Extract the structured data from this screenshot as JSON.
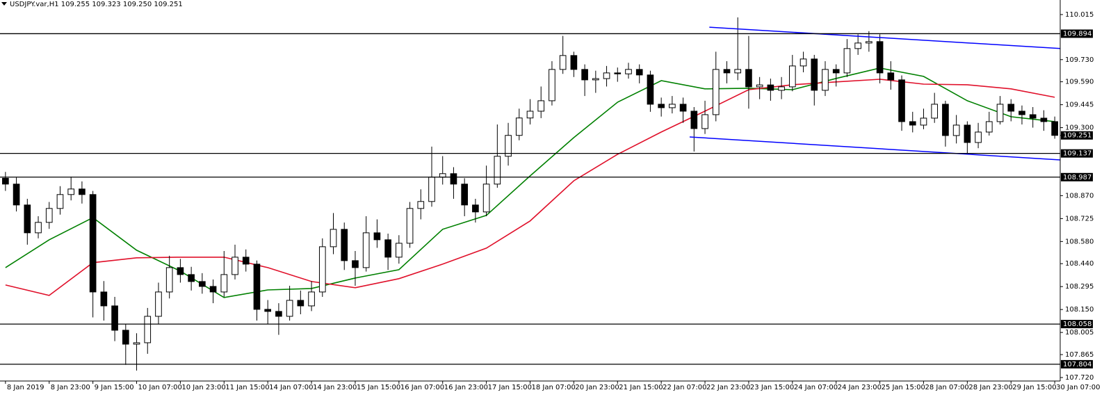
{
  "chart_data": {
    "type": "candlestick",
    "header": "USDJPY.var,H1  109.255 109.323 109.250 109.251",
    "open": [
      108.98,
      108.943,
      108.811,
      108.635,
      108.701,
      108.789,
      108.877,
      108.912,
      108.877,
      108.261,
      108.173,
      108.019,
      107.931,
      107.94,
      108.107,
      108.261,
      108.415,
      108.371,
      108.327,
      108.296,
      108.261,
      108.371,
      108.481,
      108.437,
      108.151,
      108.138,
      108.107,
      108.208,
      108.173,
      108.261,
      108.547,
      108.657,
      108.459,
      108.415,
      108.635,
      108.591,
      108.481,
      108.569,
      108.789,
      108.833,
      108.987,
      109.009,
      108.943,
      108.811,
      108.767,
      108.943,
      109.119,
      109.251,
      109.361,
      109.404,
      109.47,
      109.668,
      109.756,
      109.668,
      109.602,
      109.61,
      109.646,
      109.64,
      109.668,
      109.633,
      109.448,
      109.426,
      109.448,
      109.404,
      109.294,
      109.382,
      109.668,
      109.646,
      109.668,
      109.558,
      109.57,
      109.536,
      109.558,
      109.69,
      109.734,
      109.536,
      109.668,
      109.646,
      109.8,
      109.835,
      109.844,
      109.646,
      109.602,
      109.338,
      109.316,
      109.36,
      109.448,
      109.25,
      109.316,
      109.206,
      109.272,
      109.338,
      109.448,
      109.404,
      109.382,
      109.36,
      109.338
    ],
    "high": [
      109.02,
      108.985,
      108.85,
      108.74,
      108.83,
      108.93,
      108.99,
      108.96,
      108.9,
      108.33,
      108.23,
      108.06,
      108.0,
      108.16,
      108.32,
      108.49,
      108.47,
      108.42,
      108.38,
      108.34,
      108.52,
      108.56,
      108.53,
      108.46,
      108.21,
      108.19,
      108.3,
      108.27,
      108.33,
      108.6,
      108.76,
      108.7,
      108.52,
      108.74,
      108.72,
      108.63,
      108.62,
      108.83,
      108.91,
      109.18,
      109.12,
      109.05,
      108.98,
      108.85,
      109.06,
      109.32,
      109.33,
      109.42,
      109.48,
      109.56,
      109.72,
      109.88,
      109.78,
      109.7,
      109.66,
      109.69,
      109.68,
      109.71,
      109.7,
      109.66,
      109.49,
      109.5,
      109.49,
      109.43,
      109.47,
      109.78,
      109.72,
      109.997,
      109.88,
      109.62,
      109.61,
      109.62,
      109.76,
      109.78,
      109.76,
      109.72,
      109.7,
      109.86,
      109.89,
      109.91,
      109.89,
      109.72,
      109.63,
      109.4,
      109.42,
      109.52,
      109.47,
      109.38,
      109.34,
      109.33,
      109.4,
      109.5,
      109.48,
      109.44,
      109.43,
      109.41,
      109.37
    ],
    "low": [
      108.9,
      108.77,
      108.56,
      108.6,
      108.66,
      108.75,
      108.84,
      108.82,
      108.1,
      108.08,
      107.95,
      107.8,
      107.764,
      107.87,
      108.06,
      108.22,
      108.32,
      108.27,
      108.25,
      108.19,
      108.23,
      108.34,
      108.39,
      108.08,
      108.06,
      107.99,
      108.08,
      108.12,
      108.14,
      108.23,
      108.5,
      108.4,
      108.3,
      108.39,
      108.54,
      108.4,
      108.44,
      108.54,
      108.72,
      108.8,
      108.94,
      108.85,
      108.74,
      108.7,
      108.74,
      108.92,
      109.06,
      109.22,
      109.32,
      109.36,
      109.44,
      109.64,
      109.62,
      109.5,
      109.52,
      109.56,
      109.59,
      109.61,
      109.58,
      109.4,
      109.37,
      109.39,
      109.33,
      109.149,
      109.26,
      109.34,
      109.58,
      109.6,
      109.42,
      109.48,
      109.47,
      109.48,
      109.53,
      109.65,
      109.44,
      109.5,
      109.56,
      109.62,
      109.76,
      109.78,
      109.58,
      109.54,
      109.28,
      109.27,
      109.29,
      109.33,
      109.18,
      109.2,
      109.13,
      109.17,
      109.25,
      109.32,
      109.34,
      109.32,
      109.3,
      109.28,
      109.23
    ],
    "close": [
      108.943,
      108.811,
      108.635,
      108.701,
      108.789,
      108.877,
      108.912,
      108.877,
      108.261,
      108.173,
      108.019,
      107.931,
      107.94,
      108.107,
      108.261,
      108.415,
      108.371,
      108.327,
      108.296,
      108.261,
      108.371,
      108.481,
      108.437,
      108.151,
      108.138,
      108.107,
      108.208,
      108.173,
      108.261,
      108.547,
      108.657,
      108.459,
      108.415,
      108.635,
      108.591,
      108.481,
      108.569,
      108.789,
      108.833,
      108.987,
      109.009,
      108.943,
      108.811,
      108.767,
      108.943,
      109.119,
      109.251,
      109.361,
      109.404,
      109.47,
      109.668,
      109.756,
      109.668,
      109.602,
      109.61,
      109.646,
      109.64,
      109.668,
      109.633,
      109.448,
      109.426,
      109.448,
      109.404,
      109.294,
      109.382,
      109.668,
      109.646,
      109.668,
      109.558,
      109.57,
      109.536,
      109.558,
      109.69,
      109.734,
      109.536,
      109.668,
      109.646,
      109.8,
      109.835,
      109.844,
      109.646,
      109.602,
      109.338,
      109.316,
      109.36,
      109.448,
      109.25,
      109.316,
      109.206,
      109.272,
      109.338,
      109.448,
      109.404,
      109.382,
      109.36,
      109.338,
      109.251
    ],
    "bull_color": "#ffffff",
    "bear_color": "#000000",
    "wick_color": "#000000",
    "xlim": [
      -0.5,
      96.5
    ],
    "ylim": [
      107.698,
      110.107
    ],
    "xticks": [
      {
        "value": 0,
        "label": "8 Jan 2019"
      },
      {
        "value": 4,
        "label": "8 Jan 23:00"
      },
      {
        "value": 8,
        "label": "9 Jan 15:00"
      },
      {
        "value": 12,
        "label": "10 Jan 07:00"
      },
      {
        "value": 16,
        "label": "10 Jan 23:00"
      },
      {
        "value": 20,
        "label": "11 Jan 15:00"
      },
      {
        "value": 24,
        "label": "14 Jan 07:00"
      },
      {
        "value": 28,
        "label": "14 Jan 23:00"
      },
      {
        "value": 32,
        "label": "15 Jan 15:00"
      },
      {
        "value": 36,
        "label": "16 Jan 07:00"
      },
      {
        "value": 40,
        "label": "16 Jan 23:00"
      },
      {
        "value": 44,
        "label": "17 Jan 15:00"
      },
      {
        "value": 48,
        "label": "18 Jan 07:00"
      },
      {
        "value": 52,
        "label": "20 Jan 23:00"
      },
      {
        "value": 56,
        "label": "21 Jan 15:00"
      },
      {
        "value": 60,
        "label": "22 Jan 07:00"
      },
      {
        "value": 64,
        "label": "22 Jan 23:00"
      },
      {
        "value": 68,
        "label": "23 Jan 15:00"
      },
      {
        "value": 72,
        "label": "24 Jan 07:00"
      },
      {
        "value": 76,
        "label": "24 Jan 23:00"
      },
      {
        "value": 80,
        "label": "25 Jan 15:00"
      },
      {
        "value": 84,
        "label": "28 Jan 07:00"
      },
      {
        "value": 88,
        "label": "28 Jan 23:00"
      },
      {
        "value": 92,
        "label": "29 Jan 15:00"
      },
      {
        "value": 96,
        "label": "30 Jan 07:00"
      }
    ],
    "yticks": [
      110.015,
      {
        "value": 109.73,
        "label": "109.730"
      },
      {
        "value": 109.59,
        "label": "109.590"
      },
      109.445,
      {
        "value": 109.3,
        "label": "109.300"
      },
      {
        "value": 108.87,
        "label": "108.870"
      },
      108.725,
      {
        "value": 108.58,
        "label": "108.580"
      },
      {
        "value": 108.44,
        "label": "108.440"
      },
      108.295,
      {
        "value": 108.15,
        "label": "108.150"
      },
      108.005,
      107.865,
      {
        "value": 107.72,
        "label": "107.720"
      }
    ],
    "lines": [
      {
        "color": "#008000",
        "x": [
          0,
          4,
          8,
          12,
          16,
          20,
          24,
          28,
          32,
          36,
          40,
          44,
          48,
          52,
          56,
          60,
          64,
          68,
          72,
          76,
          80,
          84,
          88,
          92,
          96
        ],
        "values": [
          108.415,
          108.591,
          108.731,
          108.525,
          108.393,
          108.226,
          108.274,
          108.283,
          108.349,
          108.402,
          108.657,
          108.745,
          108.995,
          109.237,
          109.461,
          109.597,
          109.545,
          109.549,
          109.54,
          109.611,
          109.677,
          109.624,
          109.47,
          109.369,
          109.338
        ]
      },
      {
        "color": "#e0102a",
        "x": [
          0,
          4,
          8,
          12,
          16,
          20,
          24,
          28,
          32,
          36,
          40,
          44,
          48,
          52,
          56,
          60,
          64,
          68,
          72,
          76,
          80,
          84,
          88,
          92,
          96
        ],
        "values": [
          108.305,
          108.239,
          108.446,
          108.477,
          108.481,
          108.481,
          108.415,
          108.327,
          108.288,
          108.345,
          108.437,
          108.538,
          108.71,
          108.964,
          109.131,
          109.272,
          109.404,
          109.54,
          109.571,
          109.589,
          109.606,
          109.575,
          109.571,
          109.545,
          109.492
        ]
      }
    ],
    "trendlines": [
      {
        "color": "#0000ff",
        "x": [
          64.4,
          96.5
        ],
        "values": [
          109.935,
          109.8
        ]
      },
      {
        "color": "#0000ff",
        "x": [
          62.6,
          96.5
        ],
        "values": [
          109.241,
          109.096
        ]
      }
    ],
    "levels": [
      109.894,
      109.137,
      108.987,
      108.058,
      107.804
    ],
    "level_color": "#000000",
    "current_price": 109.251
  }
}
